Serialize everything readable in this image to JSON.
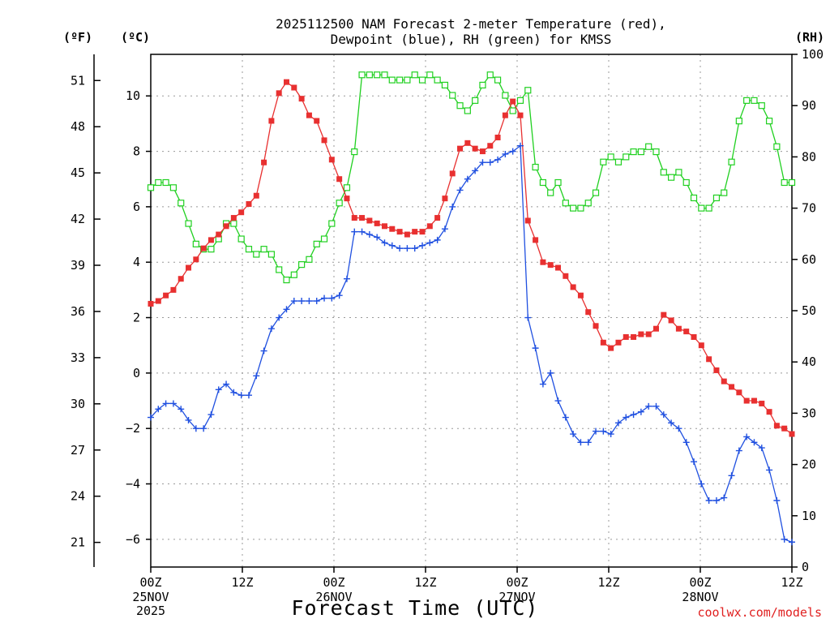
{
  "chart_data": {
    "type": "line",
    "title_line1": "2025112500 NAM Forecast 2-meter Temperature (red),",
    "title_line2": "Dewpoint (blue), RH (green) for KMSS",
    "unit_f": "(ºF)",
    "unit_c": "(ºC)",
    "unit_rh": "(RH)",
    "xlabel": "Forecast Time (UTC)",
    "credit": "coolwx.com/models",
    "x_hours_range": [
      0,
      84
    ],
    "ylim_c": [
      -7,
      11.5
    ],
    "ylim_rh": [
      0,
      100
    ],
    "f_ticks": [
      "51",
      "48",
      "45",
      "42",
      "39",
      "36",
      "33",
      "30",
      "27",
      "24",
      "21"
    ],
    "f_values": [
      51,
      48,
      45,
      42,
      39,
      36,
      33,
      30,
      27,
      24,
      21
    ],
    "c_ticks": [
      "10",
      "8",
      "6",
      "4",
      "2",
      "0",
      "−2",
      "−4",
      "−6"
    ],
    "c_values": [
      10,
      8,
      6,
      4,
      2,
      0,
      -2,
      -4,
      -6
    ],
    "rh_ticks": [
      "100",
      "90",
      "80",
      "70",
      "60",
      "50",
      "40",
      "30",
      "20",
      "10",
      "0"
    ],
    "rh_values": [
      100,
      90,
      80,
      70,
      60,
      50,
      40,
      30,
      20,
      10,
      0
    ],
    "x_ticks": [
      {
        "hour": 0,
        "time": "00Z",
        "date": "25NOV",
        "year": "2025"
      },
      {
        "hour": 12,
        "time": "12Z",
        "date": "",
        "year": ""
      },
      {
        "hour": 24,
        "time": "00Z",
        "date": "26NOV",
        "year": ""
      },
      {
        "hour": 36,
        "time": "12Z",
        "date": "",
        "year": ""
      },
      {
        "hour": 48,
        "time": "00Z",
        "date": "27NOV",
        "year": ""
      },
      {
        "hour": 60,
        "time": "12Z",
        "date": "",
        "year": ""
      },
      {
        "hour": 72,
        "time": "00Z",
        "date": "28NOV",
        "year": ""
      },
      {
        "hour": 84,
        "time": "12Z",
        "date": "",
        "year": ""
      }
    ],
    "series": [
      {
        "name": "Temperature",
        "unit": "C",
        "color": "#e83030",
        "marker": "filled-square",
        "values": [
          2.5,
          2.6,
          2.8,
          3.0,
          3.4,
          3.8,
          4.1,
          4.5,
          4.8,
          5.0,
          5.3,
          5.6,
          5.8,
          6.1,
          6.4,
          7.6,
          9.1,
          10.1,
          10.5,
          10.3,
          9.9,
          9.3,
          9.1,
          8.4,
          7.7,
          7.0,
          6.3,
          5.6,
          5.6,
          5.5,
          5.4,
          5.3,
          5.2,
          5.1,
          5.0,
          5.1,
          5.1,
          5.3,
          5.6,
          6.3,
          7.2,
          8.1,
          8.3,
          8.1,
          8.0,
          8.2,
          8.5,
          9.3,
          9.8,
          9.3,
          5.5,
          4.8,
          4.0,
          3.9,
          3.8,
          3.5,
          3.1,
          2.8,
          2.2,
          1.7,
          1.1,
          0.9,
          1.1,
          1.3,
          1.3,
          1.4,
          1.4,
          1.6,
          2.1,
          1.9,
          1.6,
          1.5,
          1.3,
          1.0,
          0.5,
          0.1,
          -0.3,
          -0.5,
          -0.7,
          -1.0,
          -1.0,
          -1.1,
          -1.4,
          -1.9,
          -2.0,
          -2.2
        ]
      },
      {
        "name": "Dewpoint",
        "unit": "C",
        "color": "#2050e0",
        "marker": "plus",
        "values": [
          -1.6,
          -1.3,
          -1.1,
          -1.1,
          -1.3,
          -1.7,
          -2.0,
          -2.0,
          -1.5,
          -0.6,
          -0.4,
          -0.7,
          -0.8,
          -0.8,
          -0.1,
          0.8,
          1.6,
          2.0,
          2.3,
          2.6,
          2.6,
          2.6,
          2.6,
          2.7,
          2.7,
          2.8,
          3.4,
          5.1,
          5.1,
          5.0,
          4.9,
          4.7,
          4.6,
          4.5,
          4.5,
          4.5,
          4.6,
          4.7,
          4.8,
          5.2,
          6.0,
          6.6,
          7.0,
          7.3,
          7.6,
          7.6,
          7.7,
          7.9,
          8.0,
          8.2,
          2.0,
          0.9,
          -0.4,
          0.0,
          -1.0,
          -1.6,
          -2.2,
          -2.5,
          -2.5,
          -2.1,
          -2.1,
          -2.2,
          -1.8,
          -1.6,
          -1.5,
          -1.4,
          -1.2,
          -1.2,
          -1.5,
          -1.8,
          -2.0,
          -2.5,
          -3.2,
          -4.0,
          -4.6,
          -4.6,
          -4.5,
          -3.7,
          -2.8,
          -2.3,
          -2.5,
          -2.7,
          -3.5,
          -4.6,
          -6.0,
          -6.1
        ]
      },
      {
        "name": "RH",
        "unit": "%",
        "color": "#20d020",
        "marker": "open-square",
        "values": [
          74,
          75,
          75,
          74,
          71,
          67,
          63,
          62,
          62,
          64,
          67,
          67,
          64,
          62,
          61,
          62,
          61,
          58,
          56,
          57,
          59,
          60,
          63,
          64,
          67,
          71,
          74,
          81,
          96,
          96,
          96,
          96,
          95,
          95,
          95,
          96,
          95,
          96,
          95,
          94,
          92,
          90,
          89,
          91,
          94,
          96,
          95,
          92,
          89,
          91,
          93,
          78,
          75,
          73,
          75,
          71,
          70,
          70,
          71,
          73,
          79,
          80,
          79,
          80,
          81,
          81,
          82,
          81,
          77,
          76,
          77,
          75,
          72,
          70,
          70,
          72,
          73,
          79,
          87,
          91,
          91,
          90,
          87,
          82,
          75,
          75
        ]
      }
    ]
  }
}
